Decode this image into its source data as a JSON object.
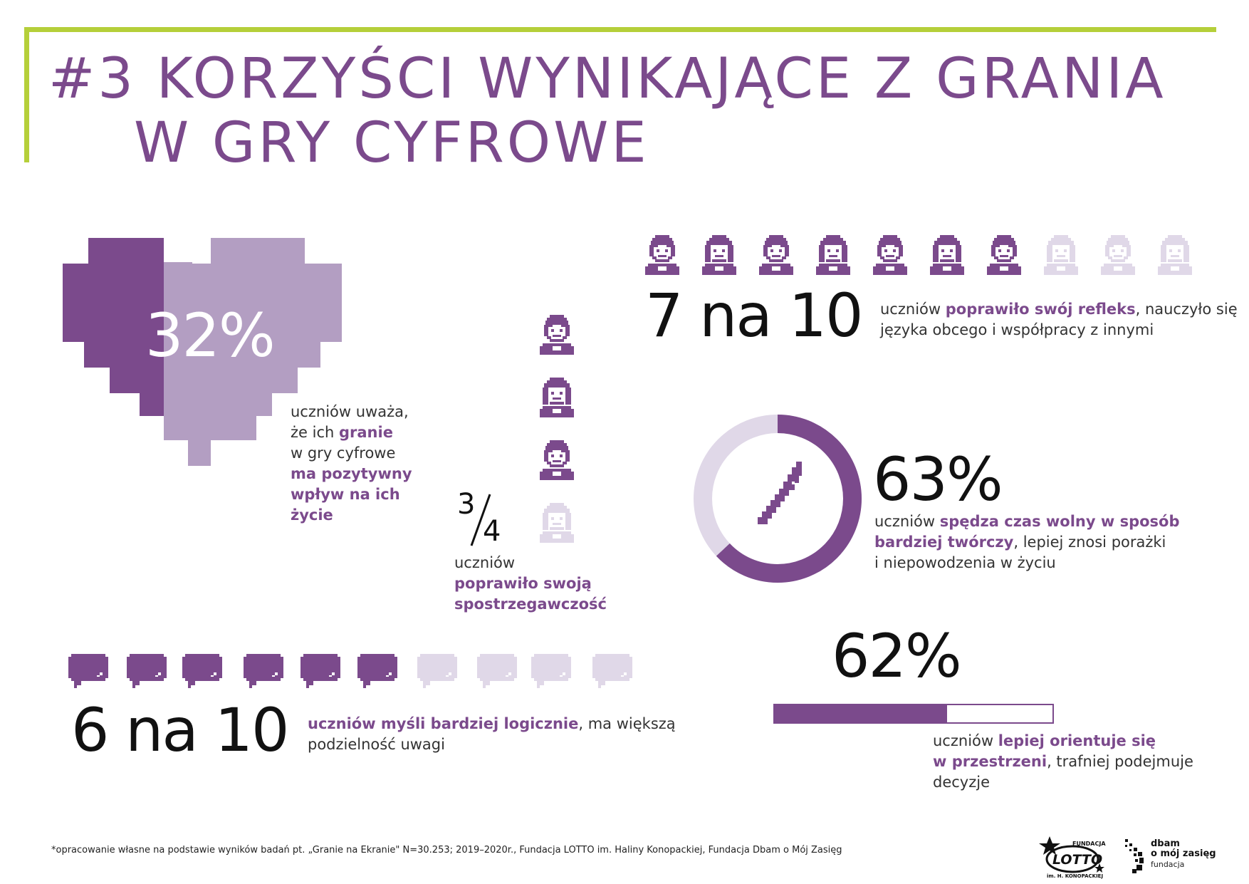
{
  "title": {
    "line1": "#3 KORZYŚCI WYNIKAJĄCE Z GRANIA",
    "line2": "W GRY CYFROWE"
  },
  "colors": {
    "accent": "#7b4a8c",
    "accent_light": "#b39ec2",
    "inactive": "#e0d8e8",
    "frame": "#b5cf3a"
  },
  "heart_stat": {
    "value_text": "32%",
    "value": 32,
    "desc": {
      "p1": "uczniów uważa,",
      "p2": "że ich ",
      "h1": "granie",
      "p3": "w gry cyfrowe",
      "h2": "ma pozytywny",
      "h3": "wpływ na ich",
      "h4": "życie"
    }
  },
  "people_stat": {
    "value_text": "7 na 10",
    "filled": 7,
    "total": 10,
    "desc": {
      "p1": "uczniów ",
      "h1": "poprawiło swój refleks",
      "p2": ", nauczyło się",
      "p3": "języka obcego i współpracy z innymi"
    }
  },
  "fraction_stat": {
    "numerator": "3",
    "denominator": "4",
    "filled": 3,
    "total": 4,
    "desc": {
      "p1": "uczniów",
      "h1": "poprawiło swoją",
      "h2": "spostrzegawczość"
    }
  },
  "donut_stat": {
    "value_text": "63%",
    "value": 63,
    "icon": "brush-icon",
    "desc": {
      "p1": "uczniów ",
      "h1": "spędza czas wolny w sposób",
      "h2": "bardziej twórczy",
      "p2": ", lepiej znosi porażki",
      "p3": "i niepowodzenia w życiu"
    }
  },
  "bubbles_stat": {
    "value_text": "6 na 10",
    "filled": 6,
    "total": 10,
    "desc": {
      "h1": "uczniów myśli bardziej logicznie",
      "p1": ", ma większą",
      "p2": "podzielność uwagi"
    }
  },
  "bar_stat": {
    "value_text": "62%",
    "value": 62,
    "desc": {
      "p1": "uczniów ",
      "h1": "lepiej orientuje się",
      "h2": "w przestrzeni",
      "p2": ", trafniej podejmuje",
      "p3": "decyzje"
    }
  },
  "footnote": "*opracowanie własne na podstawie wyników badań pt. „Granie na Ekranie\" N=30.253; 2019–2020r., Fundacja LOTTO im. Haliny Konopackiej, Fundacja Dbam o Mój Zasięg",
  "logos": {
    "lotto": {
      "top": "FUNDACJA",
      "main": "LOTTO",
      "bottom": "im. H. KONOPACKIEJ"
    },
    "dbam": {
      "line1": "dbam",
      "line2": "o mój zasięg",
      "line3": "fundacja"
    }
  }
}
